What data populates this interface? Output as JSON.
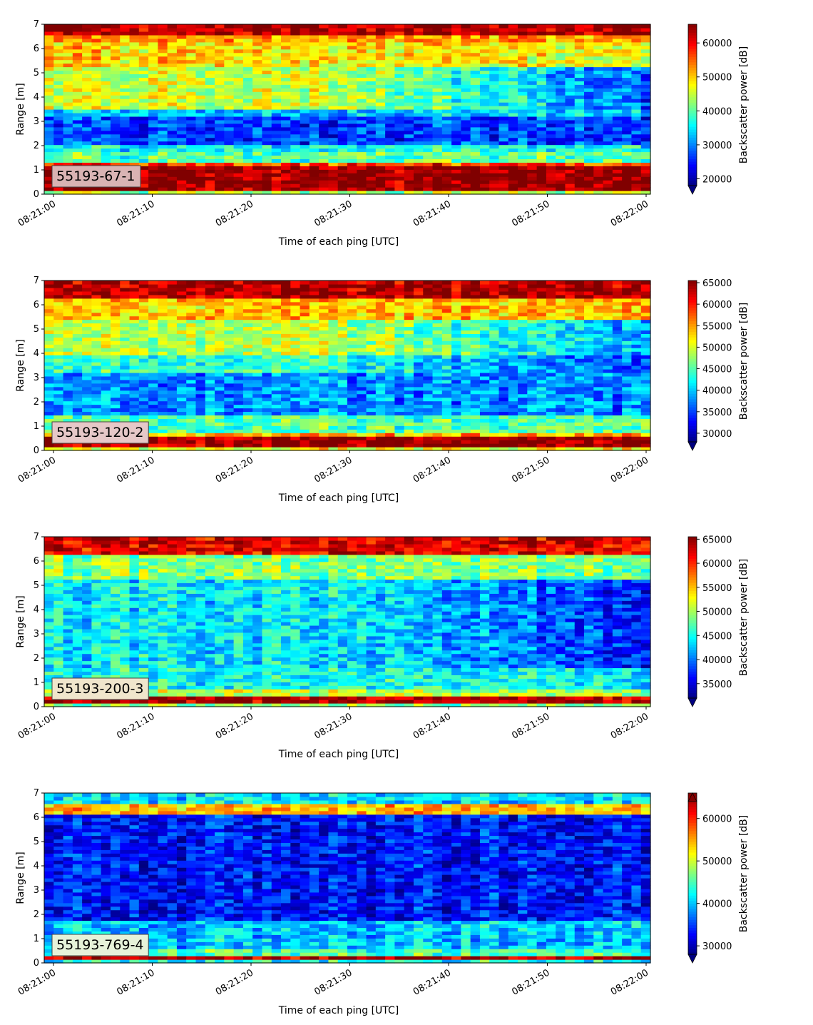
{
  "chart_data": [
    {
      "type": "heatmap",
      "label": "55193-67-1",
      "label_bg": "#d9b3b3",
      "xlabel": "Time of each ping [UTC]",
      "ylabel": "Range [m]",
      "x_start": "08:21:00",
      "x_end": "08:22:00",
      "xticks": [
        "08:21:00",
        "08:21:10",
        "08:21:20",
        "08:21:30",
        "08:21:40",
        "08:21:50",
        "08:22:00"
      ],
      "ylim": [
        0,
        7
      ],
      "yticks": [
        "0",
        "1",
        "2",
        "3",
        "4",
        "5",
        "6",
        "7"
      ],
      "colorbar": {
        "label": "Backscatter power [dB]",
        "min": 18000,
        "max": 65500,
        "ticks": [
          "20000",
          "30000",
          "40000",
          "50000",
          "60000"
        ],
        "extend": "min"
      }
    },
    {
      "type": "heatmap",
      "label": "55193-120-2",
      "label_bg": "#e6c8c8",
      "xlabel": "Time of each ping [UTC]",
      "ylabel": "Range [m]",
      "x_start": "08:21:00",
      "x_end": "08:22:00",
      "xticks": [
        "08:21:00",
        "08:21:10",
        "08:21:20",
        "08:21:30",
        "08:21:40",
        "08:21:50",
        "08:22:00"
      ],
      "ylim": [
        0,
        7
      ],
      "yticks": [
        "0",
        "1",
        "2",
        "3",
        "4",
        "5",
        "6",
        "7"
      ],
      "colorbar": {
        "label": "Backscatter power [dB]",
        "min": 28000,
        "max": 65500,
        "ticks": [
          "30000",
          "35000",
          "40000",
          "45000",
          "50000",
          "55000",
          "60000",
          "65000"
        ],
        "extend": "min"
      }
    },
    {
      "type": "heatmap",
      "label": "55193-200-3",
      "label_bg": "#f0e6cc",
      "xlabel": "Time of each ping [UTC]",
      "ylabel": "Range [m]",
      "x_start": "08:21:00",
      "x_end": "08:22:00",
      "xticks": [
        "08:21:00",
        "08:21:10",
        "08:21:20",
        "08:21:30",
        "08:21:40",
        "08:21:50",
        "08:22:00"
      ],
      "ylim": [
        0,
        7
      ],
      "yticks": [
        "0",
        "1",
        "2",
        "3",
        "4",
        "5",
        "6",
        "7"
      ],
      "colorbar": {
        "label": "Backscatter power [dB]",
        "min": 32000,
        "max": 65500,
        "ticks": [
          "35000",
          "40000",
          "45000",
          "50000",
          "55000",
          "60000",
          "65000"
        ],
        "extend": "min"
      }
    },
    {
      "type": "heatmap",
      "label": "55193-769-4",
      "label_bg": "#e6f2d9",
      "xlabel": "Time of each ping [UTC]",
      "ylabel": "Range [m]",
      "x_start": "08:21:00",
      "x_end": "08:22:00",
      "xticks": [
        "08:21:00",
        "08:21:10",
        "08:21:20",
        "08:21:30",
        "08:21:40",
        "08:21:50",
        "08:22:00"
      ],
      "ylim": [
        0,
        7
      ],
      "yticks": [
        "0",
        "1",
        "2",
        "3",
        "4",
        "5",
        "6",
        "7"
      ],
      "colorbar": {
        "label": "Backscatter power [dB]",
        "min": 28000,
        "max": 66000,
        "ticks": [
          "30000",
          "40000",
          "50000",
          "60000"
        ],
        "extend": "both"
      }
    }
  ]
}
